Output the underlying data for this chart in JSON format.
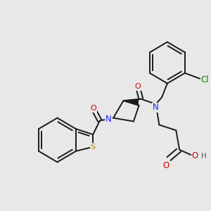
{
  "bg": "#e8e8e8",
  "bc": "#1a1a1a",
  "fig_w": 3.0,
  "fig_h": 3.0,
  "dpi": 100,
  "colors": {
    "N": "#2020ff",
    "O": "#cc0000",
    "S": "#b8860b",
    "Cl": "#008000"
  }
}
